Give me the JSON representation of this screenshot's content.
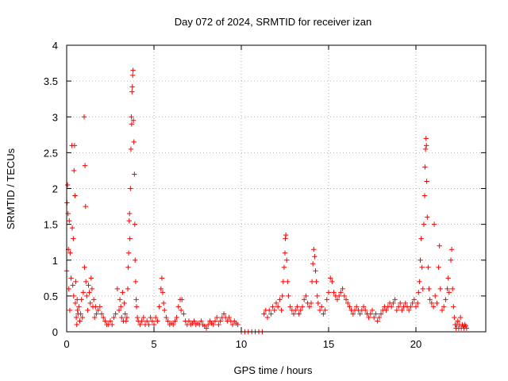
{
  "chart_data": {
    "type": "scatter",
    "title": "Day 072 of 2024, SRMTID for receiver izan",
    "xlabel": "GPS time / hours",
    "ylabel": "SRMTID / TECUs",
    "xlim": [
      0,
      24
    ],
    "ylim": [
      0,
      4
    ],
    "xticks": [
      0,
      5,
      10,
      15,
      20
    ],
    "xtick_labels": [
      "0",
      "5",
      "10",
      "15",
      "20"
    ],
    "yticks": [
      0,
      0.5,
      1,
      1.5,
      2,
      2.5,
      3,
      3.5,
      4
    ],
    "ytick_labels": [
      "0",
      "0.5",
      "1",
      "1.5",
      "2",
      "2.5",
      "3",
      "3.5",
      "4"
    ],
    "grid": true,
    "marker": "plus",
    "color": "#ff0000",
    "series": [
      {
        "name": "SRMTID",
        "points": [
          [
            0.0,
            0.85
          ],
          [
            0.02,
            1.8
          ],
          [
            0.05,
            2.05
          ],
          [
            0.08,
            1.65
          ],
          [
            0.1,
            1.15
          ],
          [
            0.12,
            0.6
          ],
          [
            0.15,
            1.55
          ],
          [
            0.18,
            0.3
          ],
          [
            0.2,
            1.1
          ],
          [
            0.25,
            0.75
          ],
          [
            0.3,
            2.6
          ],
          [
            0.32,
            1.45
          ],
          [
            0.35,
            0.65
          ],
          [
            0.38,
            1.3
          ],
          [
            0.4,
            0.5
          ],
          [
            0.42,
            2.25
          ],
          [
            0.45,
            2.6
          ],
          [
            0.48,
            1.9
          ],
          [
            0.5,
            0.4
          ],
          [
            0.52,
            0.7
          ],
          [
            0.55,
            0.2
          ],
          [
            0.58,
            0.1
          ],
          [
            0.6,
            0.45
          ],
          [
            0.62,
            0.3
          ],
          [
            0.65,
            0.25
          ],
          [
            0.7,
            0.35
          ],
          [
            0.75,
            0.15
          ],
          [
            0.8,
            0.25
          ],
          [
            0.85,
            0.45
          ],
          [
            0.9,
            0.2
          ],
          [
            0.95,
            0.55
          ],
          [
            1.0,
            3.0
          ],
          [
            1.02,
            0.9
          ],
          [
            1.05,
            2.32
          ],
          [
            1.08,
            1.75
          ],
          [
            1.1,
            0.7
          ],
          [
            1.15,
            0.5
          ],
          [
            1.2,
            0.3
          ],
          [
            1.25,
            0.65
          ],
          [
            1.3,
            0.55
          ],
          [
            1.35,
            0.4
          ],
          [
            1.4,
            0.75
          ],
          [
            1.45,
            0.6
          ],
          [
            1.5,
            0.35
          ],
          [
            1.55,
            0.45
          ],
          [
            1.6,
            0.2
          ],
          [
            1.65,
            0.35
          ],
          [
            1.7,
            0.25
          ],
          [
            1.8,
            0.3
          ],
          [
            1.9,
            0.35
          ],
          [
            2.0,
            0.25
          ],
          [
            2.1,
            0.2
          ],
          [
            2.2,
            0.15
          ],
          [
            2.3,
            0.1
          ],
          [
            2.4,
            0.1
          ],
          [
            2.5,
            0.15
          ],
          [
            2.6,
            0.1
          ],
          [
            2.7,
            0.2
          ],
          [
            2.8,
            0.25
          ],
          [
            2.9,
            0.6
          ],
          [
            3.0,
            0.3
          ],
          [
            3.05,
            0.45
          ],
          [
            3.1,
            0.35
          ],
          [
            3.15,
            0.2
          ],
          [
            3.2,
            0.55
          ],
          [
            3.25,
            0.15
          ],
          [
            3.3,
            0.4
          ],
          [
            3.35,
            0.25
          ],
          [
            3.4,
            0.15
          ],
          [
            3.45,
            0.2
          ],
          [
            3.5,
            0.6
          ],
          [
            3.52,
            0.9
          ],
          [
            3.55,
            1.1
          ],
          [
            3.58,
            1.55
          ],
          [
            3.6,
            1.65
          ],
          [
            3.62,
            1.3
          ],
          [
            3.65,
            2.0
          ],
          [
            3.68,
            2.55
          ],
          [
            3.7,
            3.0
          ],
          [
            3.72,
            2.9
          ],
          [
            3.74,
            3.35
          ],
          [
            3.76,
            3.42
          ],
          [
            3.78,
            3.58
          ],
          [
            3.8,
            3.65
          ],
          [
            3.82,
            2.95
          ],
          [
            3.85,
            2.65
          ],
          [
            3.88,
            2.2
          ],
          [
            3.9,
            1.5
          ],
          [
            3.92,
            1.0
          ],
          [
            3.95,
            0.7
          ],
          [
            3.98,
            0.45
          ],
          [
            4.0,
            0.35
          ],
          [
            4.05,
            0.2
          ],
          [
            4.1,
            0.15
          ],
          [
            4.2,
            0.1
          ],
          [
            4.3,
            0.15
          ],
          [
            4.4,
            0.2
          ],
          [
            4.5,
            0.1
          ],
          [
            4.6,
            0.15
          ],
          [
            4.7,
            0.1
          ],
          [
            4.8,
            0.2
          ],
          [
            4.9,
            0.15
          ],
          [
            5.0,
            0.1
          ],
          [
            5.1,
            0.2
          ],
          [
            5.2,
            0.15
          ],
          [
            5.3,
            0.35
          ],
          [
            5.4,
            0.6
          ],
          [
            5.45,
            0.75
          ],
          [
            5.5,
            0.55
          ],
          [
            5.55,
            0.4
          ],
          [
            5.6,
            0.3
          ],
          [
            5.7,
            0.2
          ],
          [
            5.8,
            0.15
          ],
          [
            5.9,
            0.1
          ],
          [
            6.0,
            0.12
          ],
          [
            6.1,
            0.1
          ],
          [
            6.2,
            0.15
          ],
          [
            6.3,
            0.2
          ],
          [
            6.4,
            0.35
          ],
          [
            6.5,
            0.45
          ],
          [
            6.55,
            0.3
          ],
          [
            6.6,
            0.45
          ],
          [
            6.7,
            0.25
          ],
          [
            6.8,
            0.15
          ],
          [
            6.9,
            0.1
          ],
          [
            7.0,
            0.15
          ],
          [
            7.1,
            0.1
          ],
          [
            7.2,
            0.12
          ],
          [
            7.3,
            0.15
          ],
          [
            7.4,
            0.1
          ],
          [
            7.5,
            0.12
          ],
          [
            7.6,
            0.1
          ],
          [
            7.7,
            0.15
          ],
          [
            7.8,
            0.1
          ],
          [
            7.9,
            0.08
          ],
          [
            8.0,
            0.05
          ],
          [
            8.1,
            0.1
          ],
          [
            8.2,
            0.15
          ],
          [
            8.3,
            0.12
          ],
          [
            8.4,
            0.1
          ],
          [
            8.5,
            0.15
          ],
          [
            8.6,
            0.2
          ],
          [
            8.7,
            0.1
          ],
          [
            8.8,
            0.15
          ],
          [
            8.9,
            0.2
          ],
          [
            9.0,
            0.25
          ],
          [
            9.1,
            0.2
          ],
          [
            9.2,
            0.15
          ],
          [
            9.3,
            0.2
          ],
          [
            9.4,
            0.15
          ],
          [
            9.5,
            0.1
          ],
          [
            9.6,
            0.15
          ],
          [
            9.7,
            0.12
          ],
          [
            9.8,
            0.1
          ],
          [
            10.0,
            0.0
          ],
          [
            10.2,
            0.0
          ],
          [
            10.4,
            0.0
          ],
          [
            10.6,
            0.0
          ],
          [
            10.8,
            0.0
          ],
          [
            11.0,
            0.0
          ],
          [
            11.2,
            0.0
          ],
          [
            11.3,
            0.25
          ],
          [
            11.4,
            0.3
          ],
          [
            11.5,
            0.2
          ],
          [
            11.6,
            0.3
          ],
          [
            11.7,
            0.25
          ],
          [
            11.8,
            0.35
          ],
          [
            11.9,
            0.3
          ],
          [
            12.0,
            0.4
          ],
          [
            12.1,
            0.35
          ],
          [
            12.2,
            0.45
          ],
          [
            12.3,
            0.3
          ],
          [
            12.35,
            0.5
          ],
          [
            12.4,
            0.7
          ],
          [
            12.45,
            0.9
          ],
          [
            12.5,
            1.1
          ],
          [
            12.52,
            1.3
          ],
          [
            12.55,
            1.35
          ],
          [
            12.6,
            1.0
          ],
          [
            12.65,
            0.7
          ],
          [
            12.7,
            0.5
          ],
          [
            12.8,
            0.35
          ],
          [
            12.9,
            0.3
          ],
          [
            13.0,
            0.25
          ],
          [
            13.1,
            0.3
          ],
          [
            13.2,
            0.35
          ],
          [
            13.3,
            0.25
          ],
          [
            13.4,
            0.3
          ],
          [
            13.5,
            0.35
          ],
          [
            13.6,
            0.45
          ],
          [
            13.7,
            0.5
          ],
          [
            13.8,
            0.4
          ],
          [
            13.9,
            0.35
          ],
          [
            14.0,
            0.4
          ],
          [
            14.05,
            0.7
          ],
          [
            14.1,
            0.95
          ],
          [
            14.15,
            1.15
          ],
          [
            14.2,
            1.05
          ],
          [
            14.25,
            0.85
          ],
          [
            14.3,
            0.7
          ],
          [
            14.35,
            0.5
          ],
          [
            14.4,
            0.4
          ],
          [
            14.5,
            0.3
          ],
          [
            14.6,
            0.35
          ],
          [
            14.7,
            0.25
          ],
          [
            14.8,
            0.3
          ],
          [
            14.9,
            0.45
          ],
          [
            15.0,
            0.55
          ],
          [
            15.1,
            0.75
          ],
          [
            15.2,
            0.7
          ],
          [
            15.3,
            0.55
          ],
          [
            15.4,
            0.5
          ],
          [
            15.5,
            0.45
          ],
          [
            15.6,
            0.5
          ],
          [
            15.7,
            0.55
          ],
          [
            15.8,
            0.6
          ],
          [
            15.9,
            0.5
          ],
          [
            16.0,
            0.45
          ],
          [
            16.1,
            0.4
          ],
          [
            16.2,
            0.35
          ],
          [
            16.3,
            0.3
          ],
          [
            16.4,
            0.25
          ],
          [
            16.5,
            0.3
          ],
          [
            16.6,
            0.35
          ],
          [
            16.7,
            0.3
          ],
          [
            16.8,
            0.25
          ],
          [
            16.9,
            0.3
          ],
          [
            17.0,
            0.35
          ],
          [
            17.1,
            0.3
          ],
          [
            17.2,
            0.25
          ],
          [
            17.3,
            0.2
          ],
          [
            17.4,
            0.25
          ],
          [
            17.5,
            0.3
          ],
          [
            17.6,
            0.2
          ],
          [
            17.7,
            0.25
          ],
          [
            17.8,
            0.15
          ],
          [
            17.9,
            0.2
          ],
          [
            18.0,
            0.25
          ],
          [
            18.1,
            0.3
          ],
          [
            18.2,
            0.35
          ],
          [
            18.3,
            0.3
          ],
          [
            18.4,
            0.35
          ],
          [
            18.5,
            0.4
          ],
          [
            18.6,
            0.35
          ],
          [
            18.7,
            0.4
          ],
          [
            18.8,
            0.45
          ],
          [
            18.9,
            0.3
          ],
          [
            19.0,
            0.35
          ],
          [
            19.1,
            0.4
          ],
          [
            19.2,
            0.3
          ],
          [
            19.3,
            0.35
          ],
          [
            19.4,
            0.4
          ],
          [
            19.5,
            0.35
          ],
          [
            19.6,
            0.3
          ],
          [
            19.7,
            0.35
          ],
          [
            19.8,
            0.4
          ],
          [
            19.9,
            0.45
          ],
          [
            20.0,
            0.35
          ],
          [
            20.1,
            0.4
          ],
          [
            20.15,
            0.55
          ],
          [
            20.2,
            0.7
          ],
          [
            20.25,
            1.0
          ],
          [
            20.3,
            1.3
          ],
          [
            20.35,
            0.9
          ],
          [
            20.4,
            0.6
          ],
          [
            20.45,
            1.5
          ],
          [
            20.5,
            1.9
          ],
          [
            20.52,
            2.3
          ],
          [
            20.55,
            2.55
          ],
          [
            20.58,
            2.7
          ],
          [
            20.6,
            2.6
          ],
          [
            20.62,
            2.1
          ],
          [
            20.65,
            1.6
          ],
          [
            20.7,
            0.9
          ],
          [
            20.75,
            0.6
          ],
          [
            20.8,
            0.45
          ],
          [
            20.9,
            0.4
          ],
          [
            21.0,
            0.35
          ],
          [
            21.05,
            1.5
          ],
          [
            21.1,
            0.5
          ],
          [
            21.2,
            0.4
          ],
          [
            21.3,
            0.9
          ],
          [
            21.35,
            1.2
          ],
          [
            21.4,
            0.6
          ],
          [
            21.5,
            0.3
          ],
          [
            21.6,
            0.35
          ],
          [
            21.7,
            0.45
          ],
          [
            21.8,
            0.6
          ],
          [
            21.85,
            0.75
          ],
          [
            21.9,
            0.55
          ],
          [
            22.0,
            1.0
          ],
          [
            22.05,
            1.15
          ],
          [
            22.1,
            0.6
          ],
          [
            22.15,
            0.35
          ],
          [
            22.2,
            0.2
          ],
          [
            22.25,
            0.1
          ],
          [
            22.3,
            0.05
          ],
          [
            22.35,
            0.1
          ],
          [
            22.4,
            0.15
          ],
          [
            22.45,
            0.05
          ],
          [
            22.5,
            0.1
          ],
          [
            22.55,
            0.2
          ],
          [
            22.6,
            0.05
          ],
          [
            22.65,
            0.1
          ],
          [
            22.7,
            0.08
          ],
          [
            22.75,
            0.05
          ],
          [
            22.8,
            0.1
          ],
          [
            22.85,
            0.08
          ],
          [
            22.9,
            0.05
          ]
        ]
      }
    ]
  }
}
